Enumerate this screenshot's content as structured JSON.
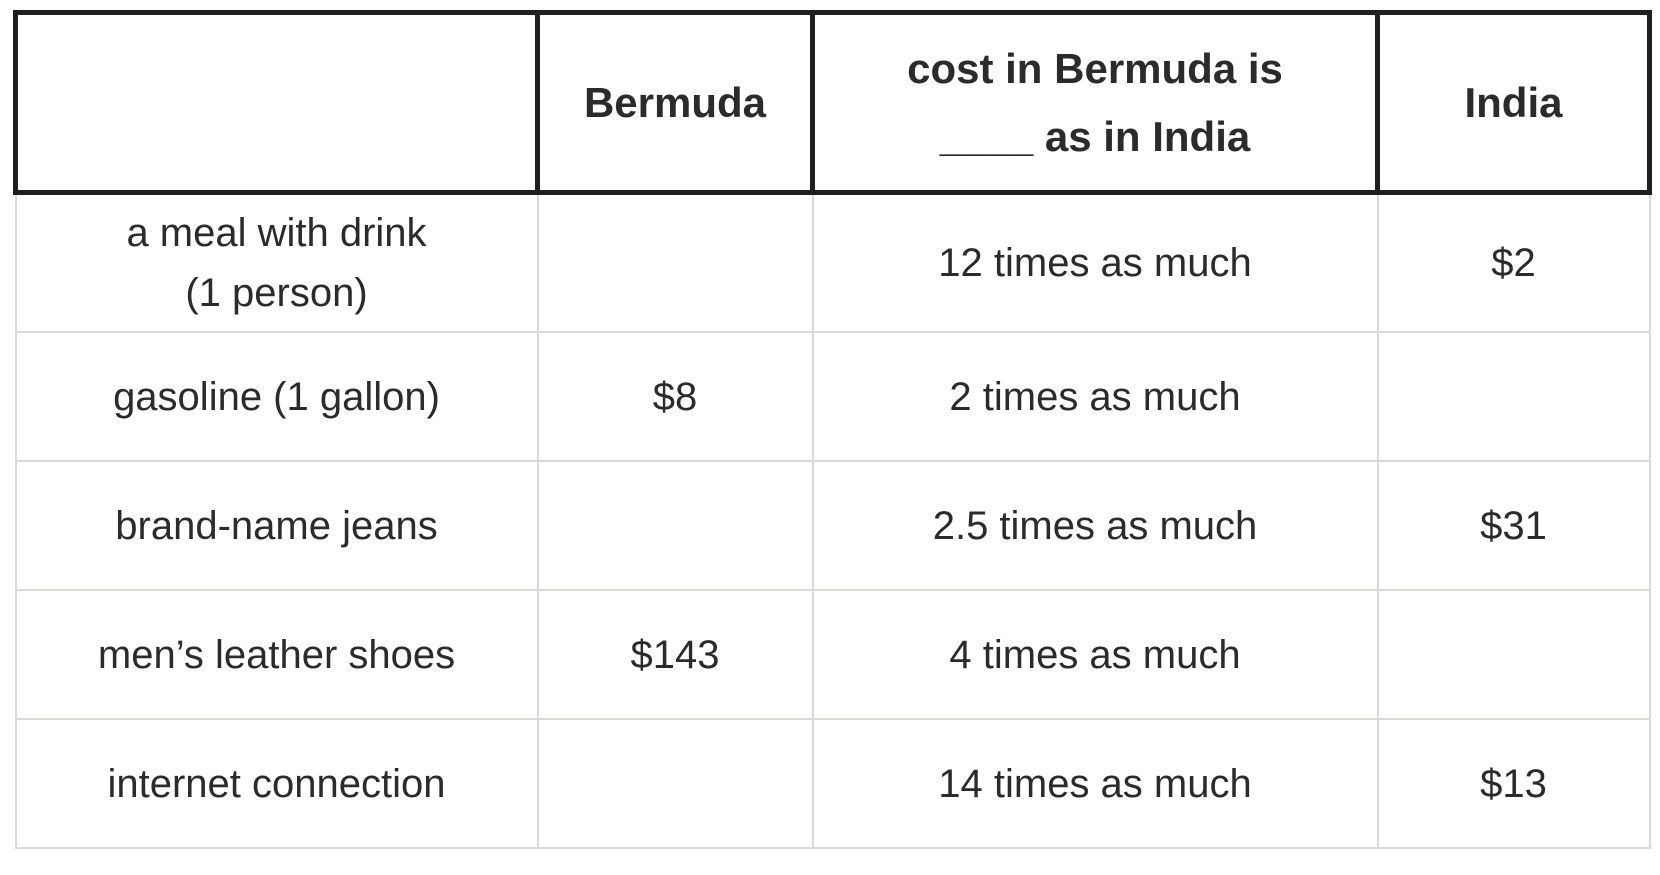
{
  "table": {
    "headers": {
      "item": "",
      "bermuda": "Bermuda",
      "ratio": "cost in Bermuda is\n____ as in India",
      "india": "India"
    },
    "rows": [
      {
        "label": "a meal with drink\n(1 person)",
        "bermuda": "",
        "ratio": "12 times as much",
        "india": "$2"
      },
      {
        "label": "gasoline (1 gallon)",
        "bermuda": "$8",
        "ratio": "2 times as much",
        "india": ""
      },
      {
        "label": "brand-name jeans",
        "bermuda": "",
        "ratio": "2.5 times as much",
        "india": "$31"
      },
      {
        "label": "men’s leather shoes",
        "bermuda": "$143",
        "ratio": "4 times as much",
        "india": ""
      },
      {
        "label": "internet connection",
        "bermuda": "",
        "ratio": "14 times as much",
        "india": "$13"
      }
    ],
    "colors": {
      "header_border": "#1f1f1f",
      "grid_line": "#d9d9d5",
      "text": "#2b2b2b",
      "background": "#ffffff"
    }
  },
  "chart_data": {
    "type": "table",
    "title": "",
    "columns": [
      "item",
      "Bermuda",
      "cost in Bermuda is ____ as in India",
      "India"
    ],
    "rows": [
      [
        "a meal with drink (1 person)",
        null,
        "12 times as much",
        "$2"
      ],
      [
        "gasoline (1 gallon)",
        "$8",
        "2 times as much",
        null
      ],
      [
        "brand-name jeans",
        null,
        "2.5 times as much",
        "$31"
      ],
      [
        "men’s leather shoes",
        "$143",
        "4 times as much",
        null
      ],
      [
        "internet connection",
        null,
        "14 times as much",
        "$13"
      ]
    ],
    "ratio_multipliers": [
      12,
      2,
      2.5,
      4,
      14
    ],
    "layout": {
      "header_border": "thick-black",
      "body_grid": "thin-light-gray",
      "cell_alignment": "center"
    }
  }
}
